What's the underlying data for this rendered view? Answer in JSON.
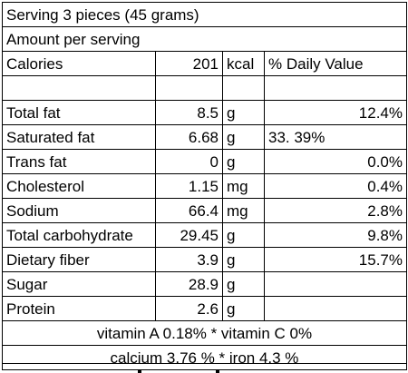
{
  "serving": "Serving 3 pieces (45 grams)",
  "amount_per_serving": "Amount per serving",
  "calories": {
    "label": "Calories",
    "value": "201",
    "unit": "kcal",
    "dv_header": "% Daily Value"
  },
  "nutrients": [
    {
      "name": "Total fat",
      "amount": "8.5",
      "unit": "g",
      "dv": "12.4%",
      "dv_align": "right"
    },
    {
      "name": "Saturated fat",
      "amount": "6.68",
      "unit": "g",
      "dv": "33. 39%",
      "dv_align": "left"
    },
    {
      "name": "Trans fat",
      "amount": "0",
      "unit": "g",
      "dv": "0.0%",
      "dv_align": "right"
    },
    {
      "name": "Cholesterol",
      "amount": "1.15",
      "unit": "mg",
      "dv": "0.4%",
      "dv_align": "right"
    },
    {
      "name": "Sodium",
      "amount": "66.4",
      "unit": "mg",
      "dv": "2.8%",
      "dv_align": "right"
    },
    {
      "name": "Total carbohydrate",
      "amount": "29.45",
      "unit": "g",
      "dv": "9.8%",
      "dv_align": "right"
    },
    {
      "name": "Dietary fiber",
      "amount": "3.9",
      "unit": "g",
      "dv": "15.7%",
      "dv_align": "right"
    },
    {
      "name": "Sugar",
      "amount": "28.9",
      "unit": "g",
      "dv": "",
      "dv_align": "right"
    },
    {
      "name": "Protein",
      "amount": "2.6",
      "unit": "g",
      "dv": "",
      "dv_align": "right"
    }
  ],
  "vitamins_line": "vitamin A 0.18%  * vitamin C  0%",
  "minerals_line": "calcium 3.76 %  * iron 4.3 %"
}
